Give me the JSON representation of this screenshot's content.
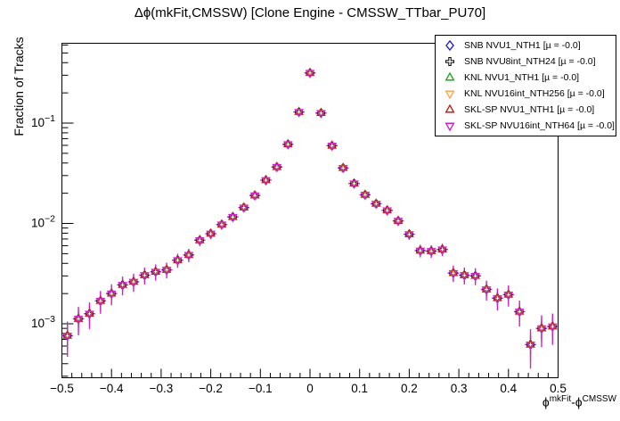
{
  "title": "Δϕ(mkFit,CMSSW) [Clone Engine - CMSSW_TTbar_PU70]",
  "axes": {
    "y_label": "Fraction of Tracks",
    "x_label": {
      "phi1": "ϕ",
      "sup1": "mkFit",
      "mid": "-ϕ",
      "sup2": "CMSSW"
    },
    "x_ticks": [
      {
        "v": -0.5,
        "label": "−0.5"
      },
      {
        "v": -0.4,
        "label": "−0.4"
      },
      {
        "v": -0.3,
        "label": "−0.3"
      },
      {
        "v": -0.2,
        "label": "−0.2"
      },
      {
        "v": -0.1,
        "label": "−0.1"
      },
      {
        "v": 0,
        "label": "0"
      },
      {
        "v": 0.1,
        "label": "0.1"
      },
      {
        "v": 0.2,
        "label": "0.2"
      },
      {
        "v": 0.3,
        "label": "0.3"
      },
      {
        "v": 0.4,
        "label": "0.4"
      },
      {
        "v": 0.5,
        "label": "0.5"
      }
    ],
    "y_ticks": [
      {
        "v": 0.1,
        "base": "10",
        "exp": "−1"
      },
      {
        "v": 0.01,
        "base": "10",
        "exp": "−2"
      },
      {
        "v": 0.001,
        "base": "10",
        "exp": "−3"
      }
    ],
    "x_range": [
      -0.5,
      0.5
    ],
    "y_range_log": [
      0.00029,
      0.625
    ],
    "y_scale": "log",
    "grid": false
  },
  "legend": {
    "position": "top-right",
    "entries": [
      {
        "label": "SNB NVU1_NTH1 [µ = -0.0]",
        "marker": "open-diamond",
        "color": "#2020cc"
      },
      {
        "label": "SNB NVU8int_NTH24 [µ = -0.0]",
        "marker": "open-cross",
        "color": "#000000"
      },
      {
        "label": "KNL NVU1_NTH1 [µ = -0.0]",
        "marker": "open-triangle-up",
        "color": "#1faa1f"
      },
      {
        "label": "KNL NVU16int_NTH256 [µ = -0.0]",
        "marker": "open-triangle-down",
        "color": "#ffa54f"
      },
      {
        "label": "SKL-SP NVU1_NTH1 [µ = -0.0]",
        "marker": "open-triangle-up",
        "color": "#c0201a"
      },
      {
        "label": "SKL-SP NVU16int_NTH64 [µ = -0.0]",
        "marker": "open-triangle-down",
        "color": "#cc22cc"
      }
    ]
  },
  "chart_data": {
    "type": "scatter",
    "title": "Δϕ(mkFit,CMSSW) [Clone Engine - CMSSW_TTbar_PU70]",
    "xlabel": "ϕ^mkFit - ϕ^CMSSW",
    "ylabel": "Fraction of Tracks",
    "xlim": [
      -0.5,
      0.5
    ],
    "ylim": [
      0.00029,
      0.625
    ],
    "y_scale": "log",
    "bin_width": 0.0222,
    "note": "All six series overlap within marker resolution; shared values below.",
    "series": [
      {
        "name": "SNB NVU1_NTH1",
        "mu": "-0.0",
        "marker": "open-diamond",
        "color": "#2020cc"
      },
      {
        "name": "SNB NVU8int_NTH24",
        "mu": "-0.0",
        "marker": "open-cross",
        "color": "#000000"
      },
      {
        "name": "KNL NVU1_NTH1",
        "mu": "-0.0",
        "marker": "open-triangle-up",
        "color": "#1faa1f"
      },
      {
        "name": "KNL NVU16int_NTH256",
        "mu": "-0.0",
        "marker": "open-triangle-down",
        "color": "#ffa54f"
      },
      {
        "name": "SKL-SP NVU1_NTH1",
        "mu": "-0.0",
        "marker": "open-triangle-up",
        "color": "#c0201a"
      },
      {
        "name": "SKL-SP NVU16int_NTH64",
        "mu": "-0.0",
        "marker": "open-triangle-down",
        "color": "#cc22cc"
      }
    ],
    "x": [
      -0.4889,
      -0.4667,
      -0.4444,
      -0.4222,
      -0.4,
      -0.3778,
      -0.3556,
      -0.3333,
      -0.3111,
      -0.2889,
      -0.2667,
      -0.2444,
      -0.2222,
      -0.2,
      -0.1778,
      -0.1556,
      -0.1333,
      -0.1111,
      -0.0889,
      -0.0667,
      -0.0444,
      -0.0222,
      0,
      0.0222,
      0.0444,
      0.0667,
      0.0889,
      0.1111,
      0.1333,
      0.1556,
      0.1778,
      0.2,
      0.2222,
      0.2444,
      0.2667,
      0.2889,
      0.3111,
      0.3333,
      0.3556,
      0.3778,
      0.4,
      0.4222,
      0.4444,
      0.4667,
      0.4889
    ],
    "fraction": [
      0.00076,
      0.00112,
      0.00126,
      0.00169,
      0.002,
      0.00244,
      0.00262,
      0.00305,
      0.0033,
      0.00345,
      0.0043,
      0.00485,
      0.0068,
      0.0079,
      0.00975,
      0.0116,
      0.0144,
      0.019,
      0.027,
      0.0365,
      0.0615,
      0.129,
      0.316,
      0.126,
      0.0595,
      0.0357,
      0.025,
      0.0193,
      0.0157,
      0.0135,
      0.0106,
      0.0078,
      0.00536,
      0.0053,
      0.0055,
      0.0032,
      0.00305,
      0.003,
      0.0022,
      0.0018,
      0.00195,
      0.00132,
      0.00062,
      0.0009,
      0.00094
    ],
    "error_bar_color": "#cc22cc"
  }
}
